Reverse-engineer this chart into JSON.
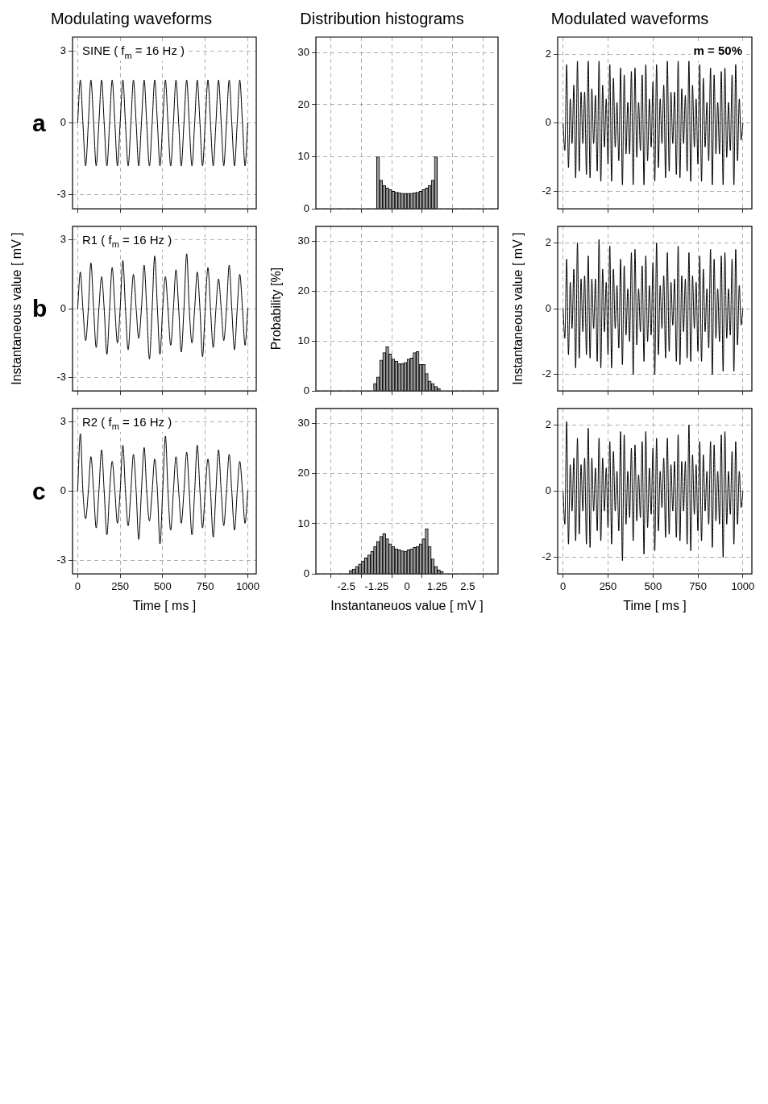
{
  "chart_data": [
    {
      "type": "line",
      "title": "Modulating waveforms",
      "annotations": [
        "a",
        "SINE ( f$_{m}$ = 16 Hz )"
      ],
      "color": "#000000",
      "marker": "none",
      "grid": true,
      "tick_labels": "y",
      "xlim": [
        -30,
        1050
      ],
      "xticks": [
        0,
        250,
        500,
        750,
        1000
      ],
      "ylim": [
        -3.6,
        3.6
      ],
      "yticks": [
        -3,
        0,
        3
      ],
      "x": [
        0,
        16,
        31,
        47,
        63,
        78,
        94,
        109,
        125,
        141,
        156,
        172,
        188,
        203,
        219,
        234,
        250,
        266,
        281,
        297,
        313,
        328,
        344,
        359,
        375,
        391,
        406,
        422,
        438,
        453,
        469,
        484,
        500,
        516,
        531,
        547,
        563,
        578,
        594,
        609,
        625,
        641,
        656,
        672,
        688,
        703,
        719,
        734,
        750,
        766,
        781,
        797,
        813,
        828,
        844,
        859,
        875,
        891,
        906,
        922,
        938,
        953,
        969,
        984,
        1000
      ],
      "values": [
        0,
        1.8,
        0,
        -1.8,
        0,
        1.8,
        0,
        -1.8,
        0,
        1.8,
        0,
        -1.8,
        0,
        1.8,
        0,
        -1.8,
        0,
        1.8,
        0,
        -1.8,
        0,
        1.8,
        0,
        -1.8,
        0,
        1.8,
        0,
        -1.8,
        0,
        1.8,
        0,
        -1.8,
        0,
        1.8,
        0,
        -1.8,
        0,
        1.8,
        0,
        -1.8,
        0,
        1.8,
        0,
        -1.8,
        0,
        1.8,
        0,
        -1.8,
        0,
        1.8,
        0,
        -1.8,
        0,
        1.8,
        0,
        -1.8,
        0,
        1.8,
        0,
        -1.8,
        0,
        1.8,
        0,
        -1.8,
        0
      ]
    },
    {
      "type": "line",
      "ylabel": "Instantaneous value [ mV ]",
      "annotations": [
        "b",
        "R1 ( f$_{m}$ = 16 Hz )"
      ],
      "color": "#000000",
      "marker": "none",
      "grid": true,
      "tick_labels": "y",
      "xlim": [
        -30,
        1050
      ],
      "xticks": [
        0,
        250,
        500,
        750,
        1000
      ],
      "ylim": [
        -3.6,
        3.6
      ],
      "yticks": [
        -3,
        0,
        3
      ],
      "x": [
        0,
        16,
        31,
        47,
        63,
        78,
        94,
        109,
        125,
        141,
        156,
        172,
        188,
        203,
        219,
        234,
        250,
        266,
        281,
        297,
        313,
        328,
        344,
        359,
        375,
        391,
        406,
        422,
        438,
        453,
        469,
        484,
        500,
        516,
        531,
        547,
        563,
        578,
        594,
        609,
        625,
        641,
        656,
        672,
        688,
        703,
        719,
        734,
        750,
        766,
        781,
        797,
        813,
        828,
        844,
        859,
        875,
        891,
        906,
        922,
        938,
        953,
        969,
        984,
        1000
      ],
      "values": [
        0,
        1.6,
        0,
        -1.4,
        0,
        2.0,
        0,
        -1.7,
        0,
        1.4,
        0,
        -2.0,
        0,
        1.8,
        0,
        -1.5,
        0,
        2.1,
        0,
        -1.8,
        0,
        1.5,
        0,
        -1.3,
        0,
        1.9,
        0,
        -2.2,
        0,
        2.3,
        0,
        -2.0,
        0,
        1.4,
        0,
        -1.6,
        0,
        1.7,
        0,
        -1.9,
        0,
        2.4,
        0,
        -1.5,
        0,
        1.6,
        0,
        -2.1,
        0,
        1.8,
        0,
        -1.7,
        0,
        1.3,
        0,
        -1.4,
        0,
        1.9,
        0,
        -1.8,
        0,
        1.5,
        0,
        -1.6,
        0
      ]
    },
    {
      "type": "line",
      "xlabel": "Time [ ms ]",
      "annotations": [
        "c",
        "R2 ( f$_{m}$ = 16 Hz )"
      ],
      "color": "#000000",
      "marker": "none",
      "grid": true,
      "xlim": [
        -30,
        1050
      ],
      "xticks": [
        0,
        250,
        500,
        750,
        1000
      ],
      "ylim": [
        -3.6,
        3.6
      ],
      "yticks": [
        -3,
        0,
        3
      ],
      "x": [
        0,
        16,
        31,
        47,
        63,
        78,
        94,
        109,
        125,
        141,
        156,
        172,
        188,
        203,
        219,
        234,
        250,
        266,
        281,
        297,
        313,
        328,
        344,
        359,
        375,
        391,
        406,
        422,
        438,
        453,
        469,
        484,
        500,
        516,
        531,
        547,
        563,
        578,
        594,
        609,
        625,
        641,
        656,
        672,
        688,
        703,
        719,
        734,
        750,
        766,
        781,
        797,
        813,
        828,
        844,
        859,
        875,
        891,
        906,
        922,
        938,
        953,
        969,
        984,
        1000
      ],
      "values": [
        0,
        2.5,
        0,
        -1.2,
        0,
        1.5,
        0,
        -1.6,
        0,
        1.8,
        0,
        -1.9,
        0,
        1.3,
        0,
        -1.4,
        0,
        2.0,
        0,
        -1.5,
        0,
        1.6,
        0,
        -2.1,
        0,
        1.9,
        0,
        -1.3,
        0,
        1.4,
        0,
        -2.3,
        0,
        2.4,
        0,
        -1.7,
        0,
        1.5,
        0,
        -1.4,
        0,
        1.7,
        0,
        -1.9,
        0,
        2.0,
        0,
        -1.6,
        0,
        1.4,
        0,
        -2.0,
        0,
        1.8,
        0,
        -1.5,
        0,
        1.6,
        0,
        -1.7,
        0,
        1.3,
        0,
        -1.4,
        0
      ]
    },
    {
      "type": "histogram",
      "title": "Distribution histograms",
      "color": "#9a9a9a",
      "grid": true,
      "tick_labels": "y",
      "xlim": [
        -3,
        3
      ],
      "xticks": [
        -2.5,
        -1.25,
        0,
        1.25,
        2.5
      ],
      "ylim": [
        0,
        33
      ],
      "yticks": [
        0,
        10,
        20,
        30
      ],
      "bins": [
        -1.25,
        -1.125,
        -1,
        -0.875,
        -0.75,
        -0.625,
        -0.5,
        -0.375,
        -0.25,
        -0.125,
        0,
        0.125,
        0.25,
        0.375,
        0.5,
        0.625,
        0.75,
        0.875,
        1,
        1.125,
        1.25
      ],
      "values": [
        10,
        5.5,
        4.5,
        4,
        3.7,
        3.4,
        3.2,
        3.1,
        3,
        3,
        3,
        3,
        3.1,
        3.2,
        3.4,
        3.7,
        4,
        4.5,
        5.5,
        10
      ]
    },
    {
      "type": "histogram",
      "ylabel": "Probability [%]",
      "color": "#9a9a9a",
      "grid": true,
      "tick_labels": "y",
      "xlim": [
        -3,
        3
      ],
      "xticks": [
        -2.5,
        -1.25,
        0,
        1.25,
        2.5
      ],
      "ylim": [
        0,
        33
      ],
      "yticks": [
        0,
        10,
        20,
        30
      ],
      "bins": [
        -1.375,
        -1.25,
        -1.125,
        -1,
        -0.875,
        -0.75,
        -0.625,
        -0.5,
        -0.375,
        -0.25,
        -0.125,
        0,
        0.125,
        0.25,
        0.375,
        0.5,
        0.625,
        0.75,
        0.875,
        1,
        1.125,
        1.25,
        1.375
      ],
      "values": [
        1.5,
        2.8,
        6.2,
        7.7,
        8.9,
        7.4,
        6.4,
        6.0,
        5.5,
        5.5,
        5.7,
        6.4,
        6.6,
        7.7,
        7.9,
        5.3,
        5.3,
        3.5,
        2.0,
        1.5,
        0.9,
        0.5
      ]
    },
    {
      "type": "histogram",
      "xlabel": "Instantaneuos value [ mV ]",
      "color": "#9a9a9a",
      "grid": true,
      "xlim": [
        -3,
        3
      ],
      "xticks": [
        -2.5,
        -1.25,
        0,
        1.25,
        2.5
      ],
      "ylim": [
        0,
        33
      ],
      "yticks": [
        0,
        10,
        20,
        30
      ],
      "bins": [
        -2.375,
        -2.25,
        -2.125,
        -2,
        -1.875,
        -1.75,
        -1.625,
        -1.5,
        -1.375,
        -1.25,
        -1.125,
        -1,
        -0.875,
        -0.75,
        -0.625,
        -0.5,
        -0.375,
        -0.25,
        -0.125,
        0,
        0.125,
        0.25,
        0.375,
        0.5,
        0.625,
        0.75,
        0.875,
        1,
        1.125,
        1.25,
        1.375,
        1.5
      ],
      "values": [
        0.7,
        1.0,
        1.5,
        2.0,
        2.6,
        3.2,
        3.8,
        4.5,
        5.5,
        6.5,
        7.5,
        8.0,
        7.0,
        6.0,
        5.5,
        5.0,
        4.8,
        4.6,
        4.5,
        4.8,
        5.0,
        5.3,
        5.5,
        6.0,
        7.0,
        9.0,
        5.5,
        3.0,
        1.5,
        0.8,
        0.5
      ]
    },
    {
      "type": "line",
      "title": "Modulated waveforms",
      "annotations": [
        "m = 50%"
      ],
      "color": "#000000",
      "marker": "none",
      "grid": true,
      "tick_labels": "y",
      "xlim": [
        -30,
        1050
      ],
      "xticks": [
        0,
        250,
        500,
        750,
        1000
      ],
      "ylim": [
        -2.5,
        2.5
      ],
      "yticks": [
        -2,
        0,
        2
      ],
      "x": [
        0,
        10,
        20,
        30,
        40,
        50,
        60,
        70,
        80,
        90,
        100,
        110,
        120,
        130,
        140,
        150,
        160,
        170,
        180,
        190,
        200,
        210,
        220,
        230,
        240,
        250,
        260,
        270,
        280,
        290,
        300,
        310,
        320,
        330,
        340,
        350,
        360,
        370,
        380,
        390,
        400,
        410,
        420,
        430,
        440,
        450,
        460,
        470,
        480,
        490,
        500,
        510,
        520,
        530,
        540,
        550,
        560,
        570,
        580,
        590,
        600,
        610,
        620,
        630,
        640,
        650,
        660,
        670,
        680,
        690,
        700,
        710,
        720,
        730,
        740,
        750,
        760,
        770,
        780,
        790,
        800,
        810,
        820,
        830,
        840,
        850,
        860,
        870,
        880,
        890,
        900,
        910,
        920,
        930,
        940,
        950,
        960,
        970,
        980,
        990,
        1000
      ],
      "values": [
        0,
        -0.8,
        1.7,
        -1.3,
        0.7,
        -0.6,
        1.1,
        -1.6,
        1.8,
        -1.4,
        0.9,
        -0.6,
        0.9,
        -1.5,
        1.8,
        -1.6,
        1.0,
        -0.6,
        0.8,
        -1.4,
        1.8,
        -1.7,
        1.1,
        -0.7,
        0.7,
        -1.2,
        1.7,
        -1.7,
        1.3,
        -0.7,
        0.6,
        -1.1,
        1.6,
        -1.8,
        1.4,
        -0.9,
        0.6,
        -0.9,
        1.5,
        -1.8,
        1.6,
        -1.0,
        0.6,
        -0.8,
        1.4,
        -1.8,
        1.7,
        -1.1,
        0.7,
        -0.7,
        1.2,
        -1.7,
        1.7,
        -1.3,
        0.7,
        -0.6,
        1.1,
        -1.6,
        1.8,
        -1.4,
        0.9,
        -0.6,
        0.9,
        -1.5,
        1.8,
        -1.6,
        1.0,
        -0.6,
        0.8,
        -1.4,
        1.8,
        -1.7,
        1.1,
        -0.7,
        0.7,
        -1.2,
        1.7,
        -1.7,
        1.3,
        -0.7,
        0.6,
        -1.1,
        1.6,
        -1.8,
        1.4,
        -0.9,
        0.6,
        -0.9,
        1.5,
        -1.8,
        1.6,
        -1.0,
        0.6,
        -0.8,
        1.4,
        -1.8,
        1.7,
        -1.1,
        0.7,
        -0.5,
        0
      ]
    },
    {
      "type": "line",
      "ylabel": "Instantaneous value [ mV ]",
      "color": "#000000",
      "marker": "none",
      "grid": true,
      "tick_labels": "y",
      "xlim": [
        -30,
        1050
      ],
      "xticks": [
        0,
        250,
        500,
        750,
        1000
      ],
      "ylim": [
        -2.5,
        2.5
      ],
      "yticks": [
        -2,
        0,
        2
      ],
      "x": [
        0,
        10,
        20,
        30,
        40,
        50,
        60,
        70,
        80,
        90,
        100,
        110,
        120,
        130,
        140,
        150,
        160,
        170,
        180,
        190,
        200,
        210,
        220,
        230,
        240,
        250,
        260,
        270,
        280,
        290,
        300,
        310,
        320,
        330,
        340,
        350,
        360,
        370,
        380,
        390,
        400,
        410,
        420,
        430,
        440,
        450,
        460,
        470,
        480,
        490,
        500,
        510,
        520,
        530,
        540,
        550,
        560,
        570,
        580,
        590,
        600,
        610,
        620,
        630,
        640,
        650,
        660,
        670,
        680,
        690,
        700,
        710,
        720,
        730,
        740,
        750,
        760,
        770,
        780,
        790,
        800,
        810,
        820,
        830,
        840,
        850,
        860,
        870,
        880,
        890,
        900,
        910,
        920,
        930,
        940,
        950,
        960,
        970,
        980,
        990,
        1000
      ],
      "values": [
        0,
        -0.9,
        1.5,
        -1.4,
        0.8,
        -0.6,
        1.2,
        -1.8,
        2.0,
        -1.5,
        0.9,
        -0.7,
        1.0,
        -1.4,
        1.6,
        -1.5,
        0.9,
        -0.6,
        0.9,
        -1.6,
        2.1,
        -1.8,
        1.2,
        -0.7,
        0.8,
        -1.4,
        1.9,
        -1.8,
        1.2,
        -0.6,
        0.7,
        -1.2,
        1.5,
        -1.7,
        1.3,
        -0.8,
        0.6,
        -1.0,
        1.7,
        -2.0,
        1.8,
        -1.1,
        0.6,
        -0.7,
        1.3,
        -1.6,
        1.6,
        -1.0,
        0.7,
        -0.8,
        1.4,
        -2.0,
        2.0,
        -1.4,
        0.7,
        -0.6,
        1.0,
        -1.5,
        1.7,
        -1.3,
        0.8,
        -0.5,
        0.9,
        -1.6,
        1.9,
        -1.7,
        1.0,
        -0.7,
        0.9,
        -1.5,
        1.7,
        -1.6,
        1.0,
        -0.6,
        0.8,
        -1.3,
        1.6,
        -1.6,
        1.2,
        -0.7,
        0.6,
        -1.2,
        1.8,
        -2.0,
        1.5,
        -0.9,
        0.6,
        -1.0,
        1.6,
        -1.9,
        1.7,
        -0.9,
        0.6,
        -0.8,
        1.5,
        -1.9,
        1.8,
        -1.1,
        0.7,
        -0.5,
        0
      ]
    },
    {
      "type": "line",
      "xlabel": "Time [ ms ]",
      "color": "#000000",
      "marker": "none",
      "grid": true,
      "xlim": [
        -30,
        1050
      ],
      "xticks": [
        0,
        250,
        500,
        750,
        1000
      ],
      "ylim": [
        -2.5,
        2.5
      ],
      "yticks": [
        -2,
        0,
        2
      ],
      "x": [
        0,
        10,
        20,
        30,
        40,
        50,
        60,
        70,
        80,
        90,
        100,
        110,
        120,
        130,
        140,
        150,
        160,
        170,
        180,
        190,
        200,
        210,
        220,
        230,
        240,
        250,
        260,
        270,
        280,
        290,
        300,
        310,
        320,
        330,
        340,
        350,
        360,
        370,
        380,
        390,
        400,
        410,
        420,
        430,
        440,
        450,
        460,
        470,
        480,
        490,
        500,
        510,
        520,
        530,
        540,
        550,
        560,
        570,
        580,
        590,
        600,
        610,
        620,
        630,
        640,
        650,
        660,
        670,
        680,
        690,
        700,
        710,
        720,
        730,
        740,
        750,
        760,
        770,
        780,
        790,
        800,
        810,
        820,
        830,
        840,
        850,
        860,
        870,
        880,
        890,
        900,
        910,
        920,
        930,
        940,
        950,
        960,
        970,
        980,
        990,
        1000
      ],
      "values": [
        0,
        -1.0,
        2.1,
        -1.6,
        0.8,
        -0.6,
        1.0,
        -1.5,
        1.6,
        -1.3,
        0.8,
        -0.6,
        1.0,
        -1.6,
        1.9,
        -1.7,
        1.0,
        -0.6,
        0.7,
        -1.2,
        1.6,
        -1.5,
        1.0,
        -0.6,
        0.7,
        -1.1,
        1.5,
        -1.6,
        1.2,
        -0.6,
        0.6,
        -1.2,
        1.8,
        -2.1,
        1.7,
        -1.0,
        0.6,
        -0.8,
        1.3,
        -1.5,
        1.4,
        -0.9,
        0.5,
        -0.8,
        1.5,
        -1.9,
        1.8,
        -1.1,
        0.7,
        -0.7,
        1.3,
        -1.8,
        1.6,
        -1.2,
        0.6,
        -0.5,
        1.0,
        -1.4,
        1.6,
        -1.3,
        0.8,
        -0.6,
        0.9,
        -1.4,
        1.7,
        -1.5,
        0.9,
        -0.6,
        0.9,
        -1.6,
        2.0,
        -1.8,
        1.1,
        -0.7,
        0.8,
        -1.2,
        1.5,
        -1.5,
        1.1,
        -0.6,
        0.6,
        -1.0,
        1.5,
        -1.7,
        1.4,
        -0.9,
        0.6,
        -1.0,
        1.7,
        -2.0,
        1.8,
        -1.0,
        0.6,
        -0.7,
        1.2,
        -1.6,
        1.5,
        -1.0,
        0.6,
        -0.5,
        0
      ]
    }
  ]
}
